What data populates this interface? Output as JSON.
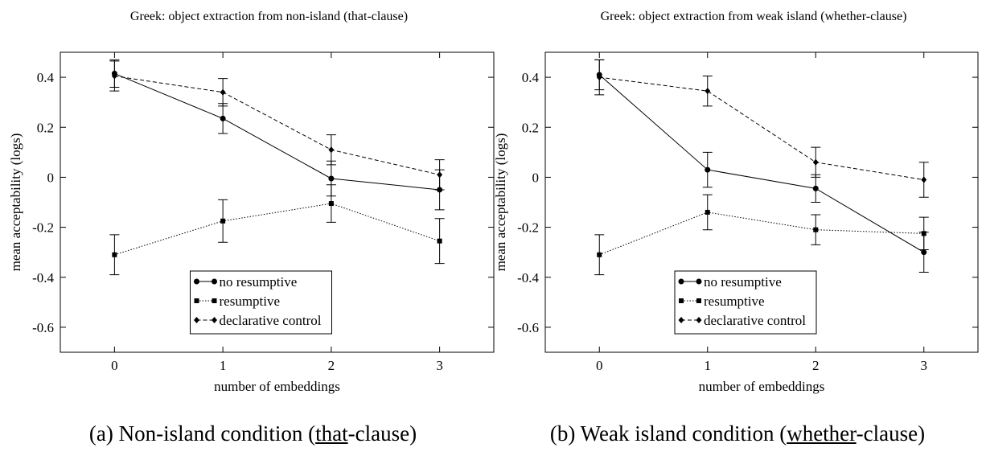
{
  "chart_data": [
    {
      "type": "line",
      "title": "Greek: object extraction from non-island (that-clause)",
      "xlabel": "number of embeddings",
      "ylabel": "mean acceptability (logs)",
      "x": [
        0,
        1,
        2,
        3
      ],
      "xlim": [
        -0.5,
        3.5
      ],
      "xticks": [
        0,
        1,
        2,
        3
      ],
      "ylim": [
        -0.7,
        0.5
      ],
      "yticks": [
        -0.6,
        -0.4,
        -0.2,
        0,
        0.2,
        0.4
      ],
      "legend": "lower center",
      "caption": {
        "before": "(a) Non-island condition (",
        "underlined": "that",
        "after": "-clause)"
      },
      "series": [
        {
          "name": "no resumptive",
          "color": "#000",
          "marker": "circle",
          "line": "solid",
          "values": [
            0.415,
            0.235,
            -0.005,
            -0.05
          ],
          "errors": [
            0.055,
            0.06,
            0.07,
            0.08
          ]
        },
        {
          "name": "resumptive",
          "color": "#000",
          "marker": "square",
          "line": "dotted",
          "values": [
            -0.31,
            -0.175,
            -0.105,
            -0.255
          ],
          "errors": [
            0.08,
            0.085,
            0.075,
            0.09
          ]
        },
        {
          "name": "declarative control",
          "color": "#000",
          "marker": "diamond",
          "line": "dashed",
          "values": [
            0.405,
            0.34,
            0.11,
            0.01
          ],
          "errors": [
            0.06,
            0.055,
            0.06,
            0.06
          ]
        }
      ]
    },
    {
      "type": "line",
      "title": "Greek: object extraction from weak island (whether-clause)",
      "xlabel": "number of embeddings",
      "ylabel": "mean acceptability (logs)",
      "x": [
        0,
        1,
        2,
        3
      ],
      "xlim": [
        -0.5,
        3.5
      ],
      "xticks": [
        0,
        1,
        2,
        3
      ],
      "ylim": [
        -0.7,
        0.5
      ],
      "yticks": [
        -0.6,
        -0.4,
        -0.2,
        0,
        0.2,
        0.4
      ],
      "legend": "lower center",
      "caption": {
        "before": "(b) Weak island condition (",
        "underlined": "whether",
        "after": "-clause)"
      },
      "series": [
        {
          "name": "no resumptive",
          "color": "#000",
          "marker": "circle",
          "line": "solid",
          "values": [
            0.41,
            0.03,
            -0.045,
            -0.3
          ],
          "errors": [
            0.06,
            0.07,
            0.055,
            0.08
          ]
        },
        {
          "name": "resumptive",
          "color": "#000",
          "marker": "square",
          "line": "dotted",
          "values": [
            -0.31,
            -0.14,
            -0.21,
            -0.225
          ],
          "errors": [
            0.08,
            0.07,
            0.06,
            0.065
          ]
        },
        {
          "name": "declarative control",
          "color": "#000",
          "marker": "diamond",
          "line": "dashed",
          "values": [
            0.4,
            0.345,
            0.06,
            -0.01
          ],
          "errors": [
            0.07,
            0.06,
            0.06,
            0.07
          ]
        }
      ]
    }
  ]
}
